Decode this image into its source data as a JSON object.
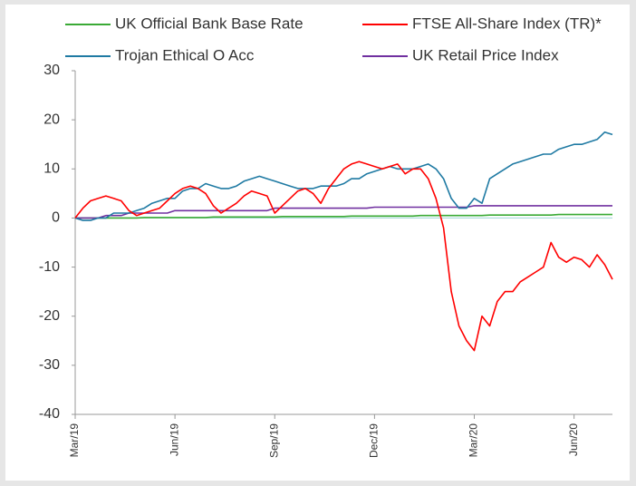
{
  "chart_data": {
    "type": "line",
    "categories": [
      "Mar/19",
      null,
      null,
      null,
      null,
      null,
      null,
      null,
      null,
      null,
      null,
      null,
      null,
      "Jun/19",
      null,
      null,
      null,
      null,
      null,
      null,
      null,
      null,
      null,
      null,
      null,
      null,
      "Sep/19",
      null,
      null,
      null,
      null,
      null,
      null,
      null,
      null,
      null,
      null,
      null,
      null,
      "Dec/19",
      null,
      null,
      null,
      null,
      null,
      null,
      null,
      null,
      null,
      null,
      null,
      null,
      "Mar/20",
      null,
      null,
      null,
      null,
      null,
      null,
      null,
      null,
      null,
      null,
      null,
      null,
      "Jun/20",
      null,
      null,
      null,
      null,
      null
    ],
    "series": [
      {
        "name": "UK Official Bank Base Rate",
        "color": "#3aaa35",
        "values": [
          0,
          0,
          0,
          0,
          0,
          0,
          0,
          0,
          0,
          0.1,
          0.1,
          0.1,
          0.1,
          0.1,
          0.1,
          0.1,
          0.1,
          0.1,
          0.2,
          0.2,
          0.2,
          0.2,
          0.2,
          0.2,
          0.2,
          0.2,
          0.2,
          0.3,
          0.3,
          0.3,
          0.3,
          0.3,
          0.3,
          0.3,
          0.3,
          0.3,
          0.4,
          0.4,
          0.4,
          0.4,
          0.4,
          0.4,
          0.4,
          0.4,
          0.4,
          0.5,
          0.5,
          0.5,
          0.5,
          0.5,
          0.5,
          0.5,
          0.5,
          0.5,
          0.6,
          0.6,
          0.6,
          0.6,
          0.6,
          0.6,
          0.6,
          0.6,
          0.6,
          0.7,
          0.7,
          0.7,
          0.7,
          0.7,
          0.7,
          0.7,
          0.7
        ]
      },
      {
        "name": "FTSE All-Share Index (TR)*",
        "color": "#ff0000",
        "values": [
          0,
          2,
          3.5,
          4,
          4.5,
          4,
          3.5,
          1.5,
          0.5,
          1,
          1.5,
          2,
          3.5,
          5,
          6,
          6.5,
          6,
          5,
          2.5,
          1,
          2,
          3,
          4.5,
          5.5,
          5,
          4.5,
          1,
          2.5,
          4,
          5.5,
          6,
          5,
          3,
          6,
          8,
          10,
          11,
          11.5,
          11,
          10.5,
          10,
          10.5,
          11,
          9,
          10,
          10,
          8,
          4,
          -2,
          -15,
          -22,
          -25,
          -27,
          -20,
          -22,
          -17,
          -15,
          -15,
          -13,
          -12,
          -11,
          -10,
          -5,
          -8,
          -9,
          -8,
          -8.5,
          -10,
          -7.5,
          -9.5,
          -12.5
        ]
      },
      {
        "name": "Trojan Ethical O Acc",
        "color": "#1f7aa3",
        "values": [
          0,
          -0.5,
          -0.5,
          0,
          0,
          1,
          1,
          1,
          1.5,
          2,
          3,
          3.5,
          4,
          4,
          5.5,
          6,
          6,
          7,
          6.5,
          6,
          6,
          6.5,
          7.5,
          8,
          8.5,
          8,
          7.5,
          7,
          6.5,
          6,
          6,
          6,
          6.5,
          6.5,
          6.5,
          7,
          8,
          8,
          9,
          9.5,
          10,
          10.5,
          10,
          10,
          10,
          10.5,
          11,
          10,
          8,
          4,
          2,
          2,
          4,
          3,
          8,
          9,
          10,
          11,
          11.5,
          12,
          12.5,
          13,
          13,
          14,
          14.5,
          15,
          15,
          15.5,
          16,
          17.5,
          17
        ]
      },
      {
        "name": "UK Retail Price Index",
        "color": "#7030a0",
        "values": [
          0,
          0,
          0,
          0,
          0.5,
          0.5,
          0.5,
          1,
          1,
          1,
          1,
          1,
          1,
          1.5,
          1.5,
          1.5,
          1.5,
          1.5,
          1.5,
          1.5,
          1.5,
          1.5,
          1.5,
          1.5,
          1.5,
          1.5,
          2,
          2,
          2,
          2,
          2,
          2,
          2,
          2,
          2,
          2,
          2,
          2,
          2,
          2.2,
          2.2,
          2.2,
          2.2,
          2.2,
          2.2,
          2.2,
          2.2,
          2.2,
          2.2,
          2.2,
          2.2,
          2.2,
          2.5,
          2.5,
          2.5,
          2.5,
          2.5,
          2.5,
          2.5,
          2.5,
          2.5,
          2.5,
          2.5,
          2.5,
          2.5,
          2.5,
          2.5,
          2.5,
          2.5,
          2.5,
          2.5
        ]
      }
    ],
    "ylim": [
      -40,
      30
    ],
    "yticks": [
      -40,
      -30,
      -20,
      -10,
      0,
      10,
      20,
      30
    ]
  }
}
